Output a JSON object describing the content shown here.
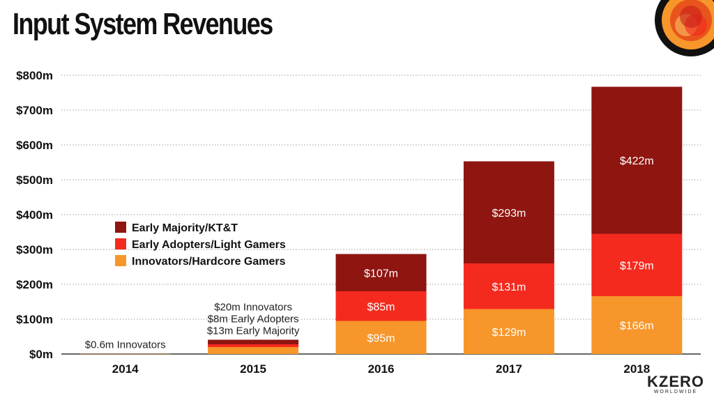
{
  "title": "Input System Revenues",
  "colors": {
    "early_majority": "#8e1510",
    "early_adopters": "#f42a1e",
    "innovators": "#f7962a",
    "grid": "#9a9a9a",
    "axis": "#333333"
  },
  "chart_data": {
    "type": "bar",
    "stacked": true,
    "categories": [
      "2014",
      "2015",
      "2016",
      "2017",
      "2018"
    ],
    "ylim": [
      0,
      800
    ],
    "yticks": [
      0,
      100,
      200,
      300,
      400,
      500,
      600,
      700,
      800
    ],
    "ytick_labels": [
      "$0m",
      "$100m",
      "$200m",
      "$300m",
      "$400m",
      "$500m",
      "$600m",
      "$700m",
      "$800m"
    ],
    "grid": true,
    "legend_position": "left-middle",
    "series": [
      {
        "name": "Innovators/Hardcore Gamers",
        "color": "#f7962a",
        "values": [
          0.6,
          20,
          95,
          129,
          166
        ],
        "labels": [
          "",
          "",
          "$95m",
          "$129m",
          "$166m"
        ]
      },
      {
        "name": "Early Adopters/Light Gamers",
        "color": "#f42a1e",
        "values": [
          0,
          8,
          85,
          131,
          179
        ],
        "labels": [
          "",
          "",
          "$85m",
          "$131m",
          "$179m"
        ]
      },
      {
        "name": "Early Majority/KT&T",
        "color": "#8e1510",
        "values": [
          0,
          13,
          107,
          293,
          422
        ],
        "labels": [
          "",
          "",
          "$107m",
          "$293m",
          "$422m"
        ]
      }
    ],
    "legend_order": [
      "Early Majority/KT&T",
      "Early Adopters/Light Gamers",
      "Innovators/Hardcore Gamers"
    ],
    "annotations": [
      {
        "category": "2014",
        "lines": [
          "$0.6m Innovators"
        ]
      },
      {
        "category": "2015",
        "lines": [
          "$20m Innovators",
          "$8m Early Adopters",
          "$13m Early Majority"
        ]
      }
    ]
  },
  "brand": {
    "name": "KZERO",
    "tagline": "WORLDWIDE"
  }
}
